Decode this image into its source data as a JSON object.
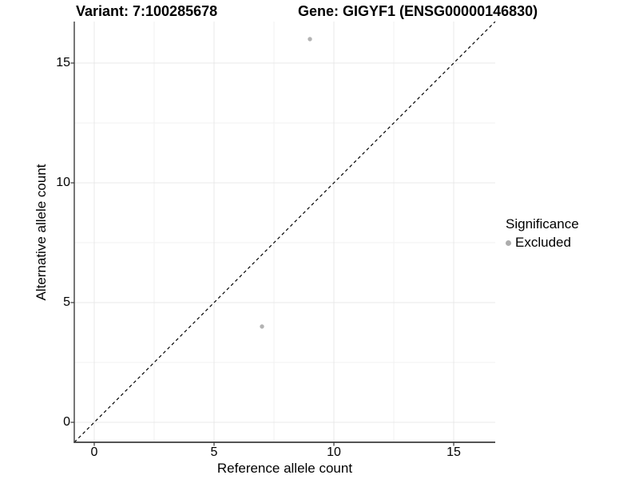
{
  "titles": {
    "variant": "Variant: 7:100285678",
    "gene": "Gene: GIGYF1 (ENSG00000146830)"
  },
  "axes": {
    "x": {
      "label": "Reference allele count",
      "tick_labels": [
        "0",
        "5",
        "10",
        "15"
      ]
    },
    "y": {
      "label": "Alternative allele count",
      "tick_labels": [
        "0",
        "5",
        "10",
        "15"
      ]
    }
  },
  "legend": {
    "title": "Significance",
    "items": [
      {
        "label": "Excluded",
        "color": "#adadad"
      }
    ]
  },
  "colors": {
    "background": "#ffffff",
    "grid_major": "#e8e8e8",
    "grid_minor": "#f2f2f2",
    "axis_line": "#3c3c3c",
    "tick_mark": "#333333",
    "point": "#b3b3b3",
    "identity_line": "#000000",
    "text": "#000000"
  },
  "chart_data": {
    "type": "scatter",
    "title": "Variant: 7:100285678   Gene: GIGYF1 (ENSG00000146830)",
    "xlabel": "Reference allele count",
    "ylabel": "Alternative allele count",
    "xlim": [
      -0.8333,
      16.7333
    ],
    "ylim": [
      -0.8333,
      16.7333
    ],
    "x_ticks": [
      0,
      5,
      10,
      15
    ],
    "y_ticks": [
      0,
      5,
      10,
      15
    ],
    "x_minor_ticks": [
      2.5,
      7.5,
      12.5
    ],
    "y_minor_ticks": [
      2.5,
      7.5,
      12.5
    ],
    "grid": "major and minor, light gray, on white background",
    "legend_position": "right-middle",
    "series": [
      {
        "name": "Excluded",
        "color": "#b3b3b3",
        "points": [
          {
            "x": 9,
            "y": 16
          },
          {
            "x": 7,
            "y": 4
          }
        ]
      }
    ],
    "reference_line": {
      "type": "identity y=x",
      "style": "dashed",
      "color": "#000000",
      "extent": "corner-to-corner of panel"
    }
  }
}
